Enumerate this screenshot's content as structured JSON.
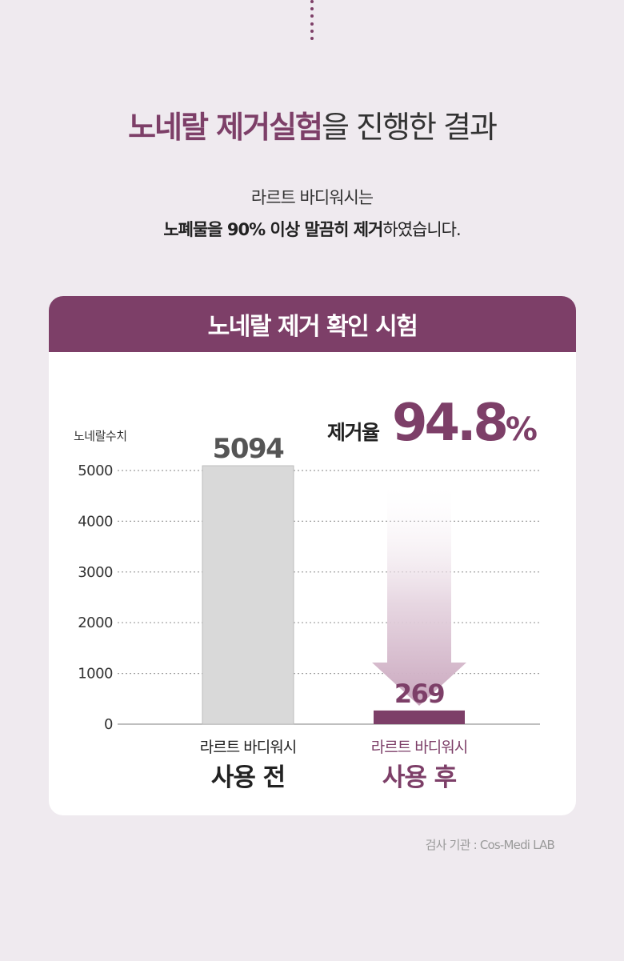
{
  "header": {
    "title_accent": "노네랄 제거실험",
    "title_rest": "을 진행한 결과",
    "subtitle_line1": "라르트 바디워시는",
    "subtitle_line2_bold": "노폐물을 90% 이상 말끔히 제거",
    "subtitle_line2_rest": "하였습니다."
  },
  "card": {
    "title": "노네랄 제거 확인 시험"
  },
  "colors": {
    "accent": "#7d3f68",
    "bar_before": "#d9d9d9",
    "background": "#efeaef"
  },
  "chart_data": {
    "type": "bar",
    "title": "노네랄 제거 확인 시험",
    "ylabel": "노네랄수치",
    "ylim": [
      0,
      5000
    ],
    "yticks": [
      0,
      1000,
      2000,
      3000,
      4000,
      5000
    ],
    "grid": true,
    "categories": [
      {
        "small": "라르트 바디워시",
        "big": "사용 전"
      },
      {
        "small": "라르트 바디워시",
        "big": "사용 후"
      }
    ],
    "values": [
      5094,
      269
    ],
    "removal_label": "제거율",
    "removal_rate": "94.8",
    "removal_unit": "%"
  },
  "footer": {
    "source": "검사 기관 : Cos-Medi LAB"
  }
}
